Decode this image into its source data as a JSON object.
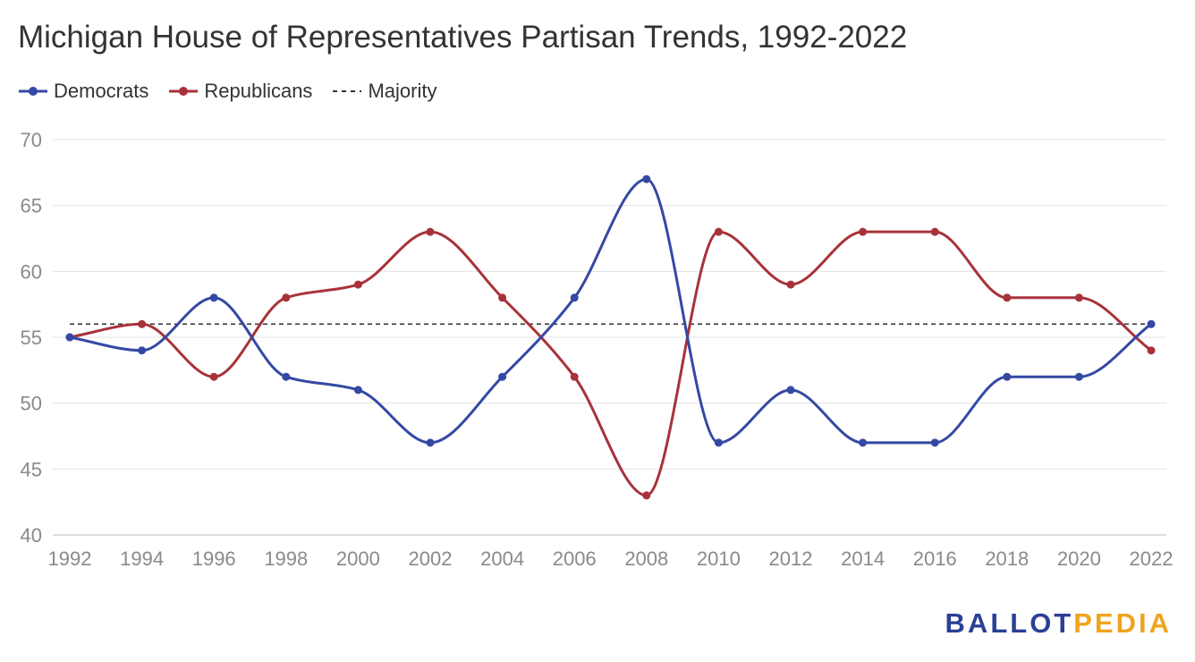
{
  "chart_data": {
    "type": "line",
    "title": "Michigan House of Representatives Partisan Trends, 1992-2022",
    "xlabel": "",
    "ylabel": "",
    "x": [
      "1992",
      "1994",
      "1996",
      "1998",
      "2000",
      "2002",
      "2004",
      "2006",
      "2008",
      "2010",
      "2012",
      "2014",
      "2016",
      "2018",
      "2020",
      "2022"
    ],
    "ylim": [
      40,
      70
    ],
    "yticks": [
      40,
      45,
      50,
      55,
      60,
      65,
      70
    ],
    "grid": true,
    "legend_position": "top-left",
    "series": [
      {
        "name": "Democrats",
        "color": "#3548a4",
        "values": [
          55,
          54,
          58,
          52,
          51,
          47,
          52,
          58,
          67,
          47,
          51,
          47,
          47,
          52,
          52,
          56
        ]
      },
      {
        "name": "Republicans",
        "color": "#a8323a",
        "values": [
          55,
          56,
          52,
          58,
          59,
          63,
          58,
          52,
          43,
          63,
          59,
          63,
          63,
          58,
          58,
          54
        ]
      }
    ],
    "reference_line": {
      "name": "Majority",
      "value": 56,
      "style": "dashed",
      "color": "#333333"
    }
  },
  "legend": {
    "democrats": "Democrats",
    "republicans": "Republicans",
    "majority": "Majority"
  },
  "logo": {
    "part1": "BALLOT",
    "part2": "PEDIA"
  }
}
